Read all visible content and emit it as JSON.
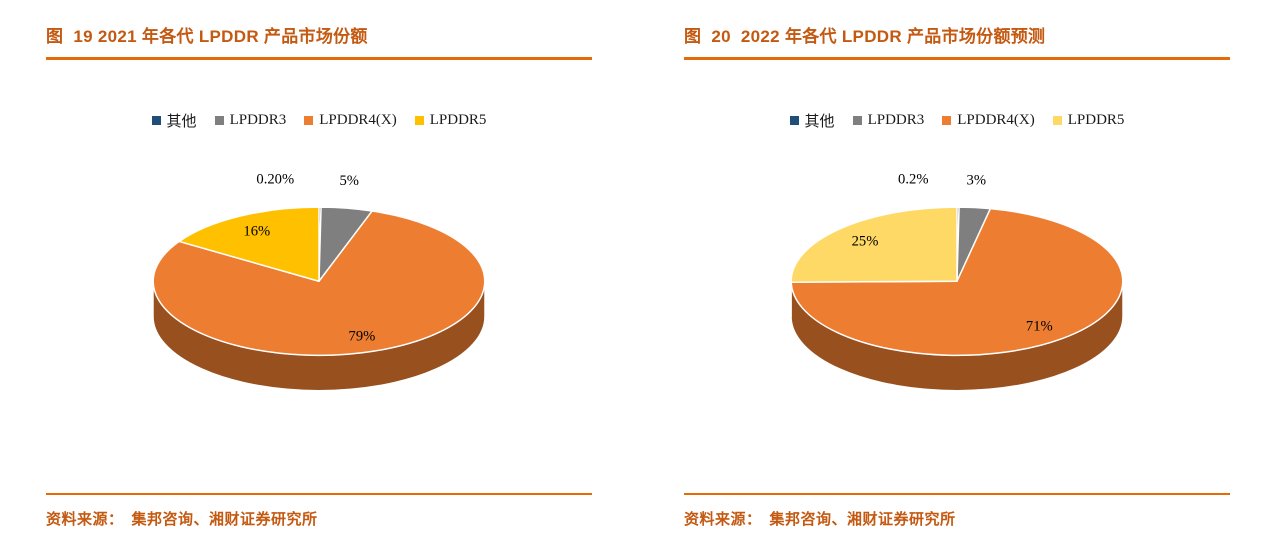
{
  "colors": {
    "rule": "#E36C09",
    "title_text": "#C45911",
    "source_text": "#C45911",
    "background": "#FFFFFF"
  },
  "figures": [
    {
      "title": "图  19 2021 年各代 LPDDR 产品市场份额",
      "source_prefix": "资料来源：",
      "source_text": "集邦咨询、湘财证券研究所"
    },
    {
      "title": "图  20  2022 年各代 LPDDR 产品市场份额预测",
      "source_prefix": "资料来源：",
      "source_text": "集邦咨询、湘财证券研究所"
    }
  ],
  "chart_data": [
    {
      "type": "pie",
      "style": "3d",
      "title": "2021 年各代 LPDDR 产品市场份额",
      "legend_position": "top",
      "start_angle_deg": -90,
      "direction": "clockwise",
      "categories": [
        "其他",
        "LPDDR3",
        "LPDDR4(X)",
        "LPDDR5"
      ],
      "values": [
        0.2,
        5,
        79,
        16
      ],
      "labels": [
        "0.20%",
        "5%",
        "79%",
        "16%"
      ],
      "colors": [
        "#1F4E79",
        "#7F7F7F",
        "#ED7D31",
        "#FFC000"
      ]
    },
    {
      "type": "pie",
      "style": "3d",
      "title": "2022 年各代 LPDDR 产品市场份额预测",
      "legend_position": "top",
      "start_angle_deg": -90,
      "direction": "clockwise",
      "categories": [
        "其他",
        "LPDDR3",
        "LPDDR4(X)",
        "LPDDR5"
      ],
      "values": [
        0.2,
        3,
        71,
        25
      ],
      "labels": [
        "0.2%",
        "3%",
        "71%",
        "25%"
      ],
      "colors": [
        "#1F4E79",
        "#7F7F7F",
        "#ED7D31",
        "#FFD966"
      ]
    }
  ]
}
